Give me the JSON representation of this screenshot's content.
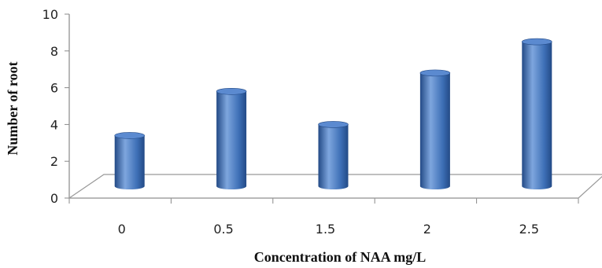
{
  "chart_data": {
    "type": "bar",
    "bar_style": "3d-cylinder",
    "categories": [
      "0",
      "0.5",
      "1.5",
      "2",
      "2.5"
    ],
    "values": [
      3.4,
      5.8,
      4.0,
      6.8,
      8.5
    ],
    "title": "",
    "xlabel": "Concentration of NAA mg/L",
    "ylabel": "Number of root",
    "ylim": [
      0,
      10
    ],
    "yticks": [
      "0",
      "2",
      "4",
      "6",
      "8",
      "10"
    ],
    "grid": false,
    "legend": "none",
    "colors": {
      "bar_body": "#3d6fb6",
      "bar_highlight": "#7ea6de",
      "bar_shadow": "#234a86",
      "bar_top": "#5b8ad0",
      "floor_stroke": "#999999",
      "axis_stroke": "#888888"
    }
  }
}
